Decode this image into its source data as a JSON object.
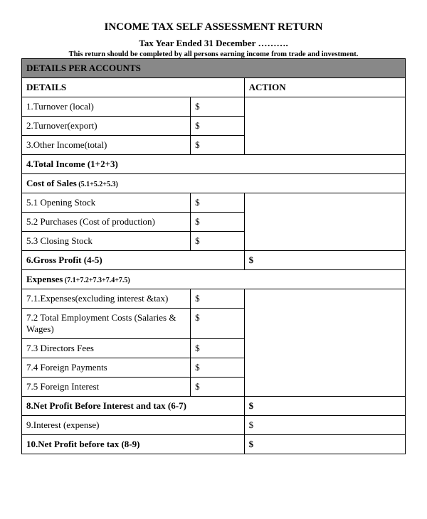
{
  "header": {
    "title": "INCOME TAX SELF ASSESSMENT RETURN",
    "subtitle": "Tax Year Ended 31 December ……….",
    "note": "This return should be completed by all persons earning income from trade and investment."
  },
  "section_header": "DETAILS PER ACCOUNTS",
  "columns": {
    "details": "DETAILS",
    "action": "ACTION"
  },
  "rows": {
    "turnover_local": "1.Turnover (local)",
    "turnover_export": "2.Turnover(export)",
    "other_income": "3.Other Income(total)",
    "total_income": "4.Total Income (1+2+3)",
    "cost_of_sales_label": "Cost of Sales",
    "cost_of_sales_formula": " (5.1+5.2+5.3)",
    "opening_stock": "5.1 Opening Stock",
    "purchases": "5.2 Purchases (Cost of production)",
    "closing_stock": "5.3 Closing Stock",
    "gross_profit": "6.Gross Profit (4-5)",
    "expenses_label": "Expenses",
    "expenses_formula": " (7.1+7.2+7.3+7.4+7.5)",
    "exp_excl": "7.1.Expenses(excluding interest &tax)",
    "emp_costs": "7.2 Total Employment Costs (Salaries & Wages)",
    "directors_fees": "7.3 Directors Fees",
    "foreign_payments": "7.4 Foreign Payments",
    "foreign_interest": "7.5 Foreign Interest",
    "net_profit_before_int": "8.Net Profit Before Interest and tax (6-7)",
    "interest_expense": "9.Interest (expense)",
    "net_profit_before_tax": "10.Net Profit before tax (8-9)"
  },
  "currency": "$"
}
